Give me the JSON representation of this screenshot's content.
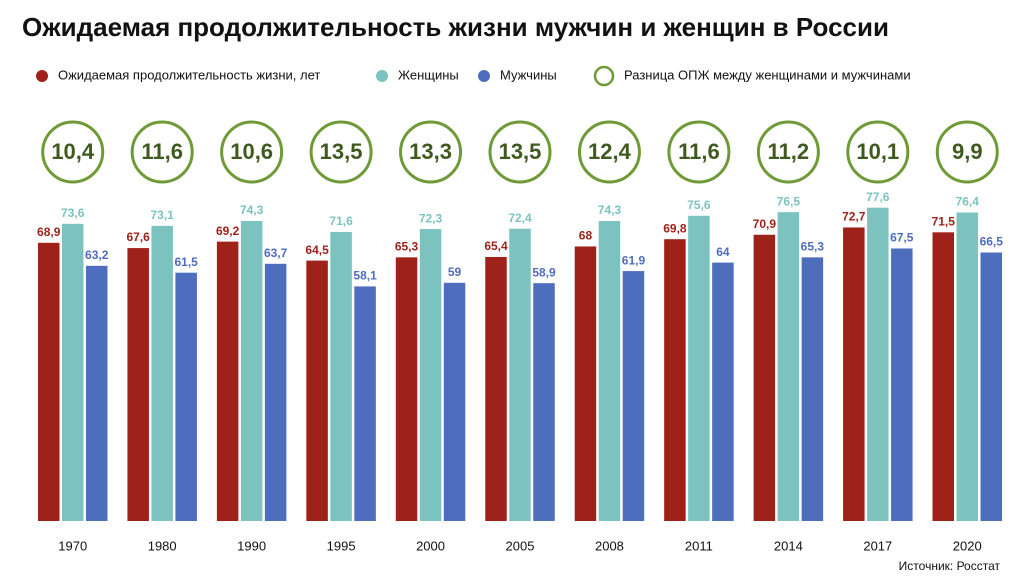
{
  "chart_data": {
    "type": "bar",
    "title": "Ожидаемая продолжительность жизни мужчин и женщин в России",
    "source": "Источник: Росстат",
    "categories": [
      "1970",
      "1980",
      "1990",
      "1995",
      "2000",
      "2005",
      "2008",
      "2011",
      "2014",
      "2017",
      "2020"
    ],
    "series": [
      {
        "name": "Ожидаемая продолжительность жизни, лет",
        "color": "#9e2219",
        "values": [
          68.9,
          67.6,
          69.2,
          64.5,
          65.3,
          65.4,
          68,
          69.8,
          70.9,
          72.7,
          71.5
        ],
        "value_labels": [
          "68,9",
          "67,6",
          "69,2",
          "64,5",
          "65,3",
          "65,4",
          "68",
          "69,8",
          "70,9",
          "72,7",
          "71,5"
        ]
      },
      {
        "name": "Женщины",
        "color": "#7cc3c0",
        "values": [
          73.6,
          73.1,
          74.3,
          71.6,
          72.3,
          72.4,
          74.3,
          75.6,
          76.5,
          77.6,
          76.4
        ],
        "value_labels": [
          "73,6",
          "73,1",
          "74,3",
          "71,6",
          "72,3",
          "72,4",
          "74,3",
          "75,6",
          "76,5",
          "77,6",
          "76,4"
        ]
      },
      {
        "name": "Мужчины",
        "color": "#4f6dbd",
        "values": [
          63.2,
          61.5,
          63.7,
          58.1,
          59,
          58.9,
          61.9,
          64,
          65.3,
          67.5,
          66.5
        ],
        "value_labels": [
          "63,2",
          "61,5",
          "63,7",
          "58,1",
          "59",
          "58,9",
          "61,9",
          "64",
          "65,3",
          "67,5",
          "66,5"
        ]
      }
    ],
    "difference": {
      "name": "Разница ОПЖ между женщинами и мужчинами",
      "color": "#6f9a37",
      "values": [
        10.4,
        11.6,
        10.6,
        13.5,
        13.3,
        13.5,
        12.4,
        11.6,
        11.2,
        10.1,
        9.9
      ],
      "value_labels": [
        "10,4",
        "11,6",
        "10,6",
        "13,5",
        "13,3",
        "13,5",
        "12,4",
        "11,6",
        "11,2",
        "10,1",
        "9,9"
      ]
    },
    "ylim": [
      0,
      80
    ]
  }
}
